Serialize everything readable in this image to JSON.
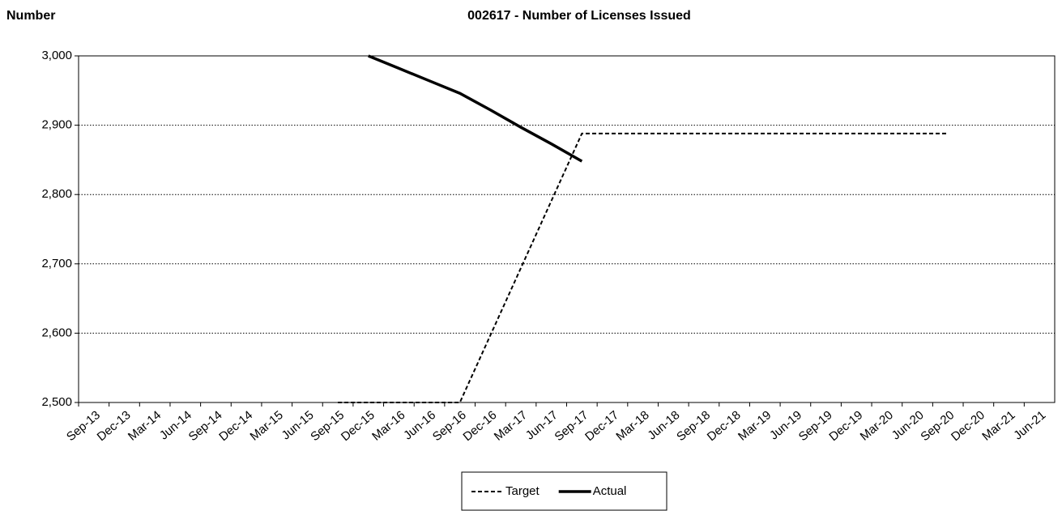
{
  "chart_data": {
    "type": "line",
    "title": "002617 - Number of Licenses Issued",
    "y_label": "Number",
    "categories": [
      "Sep-13",
      "Dec-13",
      "Mar-14",
      "Jun-14",
      "Sep-14",
      "Dec-14",
      "Mar-15",
      "Jun-15",
      "Sep-15",
      "Dec-15",
      "Mar-16",
      "Jun-16",
      "Sep-16",
      "Dec-16",
      "Mar-17",
      "Jun-17",
      "Sep-17",
      "Dec-17",
      "Mar-18",
      "Jun-18",
      "Sep-18",
      "Dec-18",
      "Mar-19",
      "Jun-19",
      "Sep-19",
      "Dec-19",
      "Mar-20",
      "Jun-20",
      "Sep-20",
      "Dec-20",
      "Mar-21",
      "Jun-21"
    ],
    "series": [
      {
        "name": "Target",
        "color": "#000000",
        "dash": true,
        "values": [
          null,
          null,
          null,
          null,
          null,
          null,
          null,
          null,
          2500,
          2500,
          2500,
          2500,
          2500,
          2597,
          2694,
          2791,
          2888,
          2888,
          2888,
          2888,
          2888,
          2888,
          2888,
          2888,
          2888,
          2888,
          2888,
          2888,
          2888,
          null,
          null,
          null
        ]
      },
      {
        "name": "Actual",
        "color": "#000000",
        "dash": false,
        "values": [
          null,
          null,
          null,
          null,
          null,
          null,
          null,
          null,
          null,
          3000,
          2982,
          2964,
          2946,
          2922,
          2897,
          2873,
          2848,
          null,
          null,
          null,
          null,
          null,
          null,
          null,
          null,
          null,
          null,
          null,
          null,
          null,
          null,
          null
        ]
      }
    ],
    "ylim": [
      2500,
      3000
    ],
    "yticks": [
      {
        "value": 2500,
        "label": "2,500"
      },
      {
        "value": 2600,
        "label": "2,600"
      },
      {
        "value": 2700,
        "label": "2,700"
      },
      {
        "value": 2800,
        "label": "2,800"
      },
      {
        "value": 2900,
        "label": "2,900"
      },
      {
        "value": 3000,
        "label": "3,000"
      }
    ],
    "grid": true,
    "legend": "bottom"
  }
}
